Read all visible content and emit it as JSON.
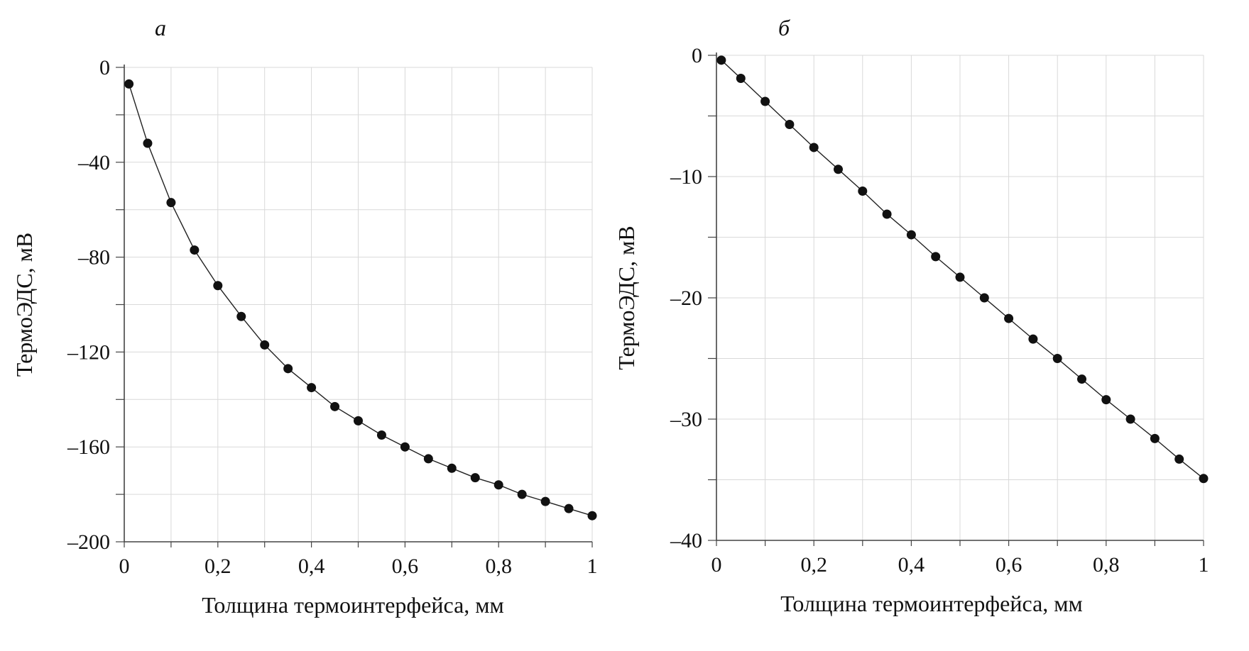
{
  "chart_data": [
    {
      "panel_label": "а",
      "type": "line",
      "xlabel": "Толщина термоинтерфейса, мм",
      "ylabel": "ТермоЭДС, мВ",
      "xlim": [
        0,
        1
      ],
      "ylim": [
        -200,
        0
      ],
      "grid": true,
      "x_ticks": [
        0,
        0.1,
        0.2,
        0.3,
        0.4,
        0.5,
        0.6,
        0.7,
        0.8,
        0.9,
        1.0
      ],
      "x_tick_labels": [
        "0",
        "",
        "0,2",
        "",
        "0,4",
        "",
        "0,6",
        "",
        "0,8",
        "",
        "1"
      ],
      "y_ticks": [
        0,
        -20,
        -40,
        -60,
        -80,
        -100,
        -120,
        -140,
        -160,
        -180,
        -200
      ],
      "y_tick_labels": [
        "0",
        "",
        "–40",
        "",
        "–80",
        "",
        "–120",
        "",
        "–160",
        "",
        "–200"
      ],
      "series": [
        {
          "name": "ТермоЭДС",
          "x": [
            0.01,
            0.05,
            0.1,
            0.15,
            0.2,
            0.25,
            0.3,
            0.35,
            0.4,
            0.45,
            0.5,
            0.55,
            0.6,
            0.65,
            0.7,
            0.75,
            0.8,
            0.85,
            0.9,
            0.95,
            1.0
          ],
          "y": [
            -7,
            -32,
            -57,
            -77,
            -92,
            -105,
            -117,
            -127,
            -135,
            -143,
            -149,
            -155,
            -160,
            -165,
            -169,
            -173,
            -176,
            -180,
            -183,
            -186,
            -189
          ]
        }
      ]
    },
    {
      "panel_label": "б",
      "type": "line",
      "xlabel": "Толщина термоинтерфейса, мм",
      "ylabel": "ТермоЭДС, мВ",
      "xlim": [
        0,
        1
      ],
      "ylim": [
        -40,
        0
      ],
      "grid": true,
      "x_ticks": [
        0,
        0.1,
        0.2,
        0.3,
        0.4,
        0.5,
        0.6,
        0.7,
        0.8,
        0.9,
        1.0
      ],
      "x_tick_labels": [
        "0",
        "",
        "0,2",
        "",
        "0,4",
        "",
        "0,6",
        "",
        "0,8",
        "",
        "1"
      ],
      "y_ticks": [
        0,
        -5,
        -10,
        -15,
        -20,
        -25,
        -30,
        -35,
        -40
      ],
      "y_tick_labels": [
        "0",
        "",
        "–10",
        "",
        "–20",
        "",
        "–30",
        "",
        "–40"
      ],
      "series": [
        {
          "name": "ТермоЭДС",
          "x": [
            0.01,
            0.05,
            0.1,
            0.15,
            0.2,
            0.25,
            0.3,
            0.35,
            0.4,
            0.45,
            0.5,
            0.55,
            0.6,
            0.65,
            0.7,
            0.75,
            0.8,
            0.85,
            0.9,
            0.95,
            1.0
          ],
          "y": [
            -0.4,
            -1.9,
            -3.8,
            -5.7,
            -7.6,
            -9.4,
            -11.2,
            -13.1,
            -14.8,
            -16.6,
            -18.3,
            -20.0,
            -21.7,
            -23.4,
            -25.0,
            -26.7,
            -28.4,
            -30.0,
            -31.6,
            -33.3,
            -34.9
          ]
        }
      ]
    }
  ]
}
